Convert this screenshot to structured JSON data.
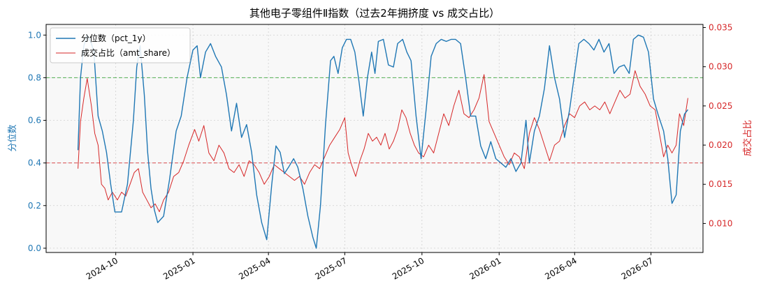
{
  "chart_data": {
    "type": "line",
    "title": "其他电子零组件Ⅱ指数（过去2年拥挤度 vs 成交占比）",
    "xlabel": "",
    "y_left_label": "分位数",
    "y_right_label": "成交占比",
    "x_ticks": [
      "2024-10",
      "2025-01",
      "2025-04",
      "2025-07",
      "2025-10",
      "2026-01",
      "2026-04",
      "2026-07"
    ],
    "y_left_ticks": [
      "0.0",
      "0.2",
      "0.4",
      "0.6",
      "0.8",
      "1.0"
    ],
    "y_right_ticks": [
      "0.010",
      "0.015",
      "0.020",
      "0.025",
      "0.030",
      "0.035"
    ],
    "y_left_lim": [
      -0.02,
      1.05
    ],
    "y_right_lim": [
      0.0063,
      0.0354
    ],
    "reference_lines": [
      {
        "axis": "left",
        "value": 0.8,
        "style": "dashed",
        "color": "#2ca02c"
      },
      {
        "axis": "left",
        "value": 0.4,
        "style": "dashed",
        "color": "#d62728"
      }
    ],
    "grid": true,
    "legend_position": "top-left",
    "series": [
      {
        "name": "分位数（pct_1y）",
        "axis": "left",
        "color": "#1f77b4",
        "points": [
          [
            "2024-08-17",
            0.46
          ],
          [
            "2024-08-20",
            0.8
          ],
          [
            "2024-08-24",
            0.95
          ],
          [
            "2024-08-28",
            1.0
          ],
          [
            "2024-09-02",
            0.96
          ],
          [
            "2024-09-05",
            0.92
          ],
          [
            "2024-09-10",
            0.62
          ],
          [
            "2024-09-15",
            0.55
          ],
          [
            "2024-09-20",
            0.45
          ],
          [
            "2024-09-25",
            0.3
          ],
          [
            "2024-09-30",
            0.17
          ],
          [
            "2024-10-08",
            0.17
          ],
          [
            "2024-10-15",
            0.3
          ],
          [
            "2024-10-22",
            0.6
          ],
          [
            "2024-10-26",
            0.85
          ],
          [
            "2024-10-30",
            0.95
          ],
          [
            "2024-11-04",
            0.72
          ],
          [
            "2024-11-08",
            0.45
          ],
          [
            "2024-11-12",
            0.28
          ],
          [
            "2024-11-16",
            0.18
          ],
          [
            "2024-11-20",
            0.12
          ],
          [
            "2024-11-27",
            0.15
          ],
          [
            "2024-12-04",
            0.32
          ],
          [
            "2024-12-12",
            0.55
          ],
          [
            "2024-12-18",
            0.62
          ],
          [
            "2024-12-25",
            0.8
          ],
          [
            "2025-01-01",
            0.93
          ],
          [
            "2025-01-06",
            0.95
          ],
          [
            "2025-01-10",
            0.8
          ],
          [
            "2025-01-16",
            0.92
          ],
          [
            "2025-01-22",
            0.96
          ],
          [
            "2025-01-28",
            0.9
          ],
          [
            "2025-02-04",
            0.85
          ],
          [
            "2025-02-10",
            0.72
          ],
          [
            "2025-02-16",
            0.55
          ],
          [
            "2025-02-22",
            0.68
          ],
          [
            "2025-02-28",
            0.52
          ],
          [
            "2025-03-06",
            0.58
          ],
          [
            "2025-03-12",
            0.45
          ],
          [
            "2025-03-18",
            0.25
          ],
          [
            "2025-03-24",
            0.12
          ],
          [
            "2025-03-30",
            0.04
          ],
          [
            "2025-04-05",
            0.3
          ],
          [
            "2025-04-10",
            0.48
          ],
          [
            "2025-04-15",
            0.45
          ],
          [
            "2025-04-20",
            0.35
          ],
          [
            "2025-04-25",
            0.38
          ],
          [
            "2025-05-01",
            0.42
          ],
          [
            "2025-05-06",
            0.38
          ],
          [
            "2025-05-12",
            0.28
          ],
          [
            "2025-05-18",
            0.15
          ],
          [
            "2025-05-24",
            0.05
          ],
          [
            "2025-05-28",
            0.0
          ],
          [
            "2025-06-02",
            0.2
          ],
          [
            "2025-06-08",
            0.58
          ],
          [
            "2025-06-14",
            0.88
          ],
          [
            "2025-06-18",
            0.9
          ],
          [
            "2025-06-23",
            0.82
          ],
          [
            "2025-06-28",
            0.94
          ],
          [
            "2025-07-03",
            0.98
          ],
          [
            "2025-07-08",
            0.98
          ],
          [
            "2025-07-13",
            0.92
          ],
          [
            "2025-07-18",
            0.78
          ],
          [
            "2025-07-23",
            0.62
          ],
          [
            "2025-07-28",
            0.8
          ],
          [
            "2025-08-02",
            0.92
          ],
          [
            "2025-08-06",
            0.82
          ],
          [
            "2025-08-10",
            0.97
          ],
          [
            "2025-08-16",
            0.98
          ],
          [
            "2025-08-22",
            0.86
          ],
          [
            "2025-08-28",
            0.85
          ],
          [
            "2025-09-02",
            0.96
          ],
          [
            "2025-09-08",
            0.98
          ],
          [
            "2025-09-13",
            0.92
          ],
          [
            "2025-09-18",
            0.88
          ],
          [
            "2025-09-24",
            0.62
          ],
          [
            "2025-09-30",
            0.42
          ],
          [
            "2025-10-06",
            0.65
          ],
          [
            "2025-10-12",
            0.9
          ],
          [
            "2025-10-18",
            0.96
          ],
          [
            "2025-10-24",
            0.98
          ],
          [
            "2025-10-30",
            0.97
          ],
          [
            "2025-11-05",
            0.98
          ],
          [
            "2025-11-10",
            0.98
          ],
          [
            "2025-11-16",
            0.96
          ],
          [
            "2025-11-22",
            0.8
          ],
          [
            "2025-11-28",
            0.62
          ],
          [
            "2025-12-04",
            0.62
          ],
          [
            "2025-12-10",
            0.48
          ],
          [
            "2025-12-16",
            0.42
          ],
          [
            "2025-12-22",
            0.5
          ],
          [
            "2025-12-28",
            0.42
          ],
          [
            "2026-01-03",
            0.4
          ],
          [
            "2026-01-09",
            0.38
          ],
          [
            "2026-01-15",
            0.42
          ],
          [
            "2026-01-21",
            0.36
          ],
          [
            "2026-01-27",
            0.4
          ],
          [
            "2026-02-02",
            0.6
          ],
          [
            "2026-02-06",
            0.4
          ],
          [
            "2026-02-12",
            0.55
          ],
          [
            "2026-02-18",
            0.62
          ],
          [
            "2026-02-24",
            0.75
          ],
          [
            "2026-03-02",
            0.95
          ],
          [
            "2026-03-08",
            0.8
          ],
          [
            "2026-03-14",
            0.7
          ],
          [
            "2026-03-20",
            0.52
          ],
          [
            "2026-03-26",
            0.65
          ],
          [
            "2026-04-01",
            0.82
          ],
          [
            "2026-04-06",
            0.96
          ],
          [
            "2026-04-12",
            0.98
          ],
          [
            "2026-04-18",
            0.96
          ],
          [
            "2026-04-24",
            0.93
          ],
          [
            "2026-04-30",
            0.98
          ],
          [
            "2026-05-06",
            0.92
          ],
          [
            "2026-05-12",
            0.96
          ],
          [
            "2026-05-18",
            0.82
          ],
          [
            "2026-05-24",
            0.85
          ],
          [
            "2026-05-30",
            0.86
          ],
          [
            "2026-06-05",
            0.82
          ],
          [
            "2026-06-10",
            0.98
          ],
          [
            "2026-06-16",
            1.0
          ],
          [
            "2026-06-22",
            0.99
          ],
          [
            "2026-06-28",
            0.92
          ],
          [
            "2026-07-04",
            0.7
          ],
          [
            "2026-07-10",
            0.62
          ],
          [
            "2026-07-16",
            0.55
          ],
          [
            "2026-07-21",
            0.42
          ],
          [
            "2026-07-26",
            0.21
          ],
          [
            "2026-07-31",
            0.25
          ],
          [
            "2026-08-05",
            0.55
          ],
          [
            "2026-08-10",
            0.63
          ],
          [
            "2026-08-14",
            0.65
          ]
        ]
      },
      {
        "name": "成交占比（amt_share）",
        "axis": "right",
        "color": "#d62728",
        "points": [
          [
            "2024-08-17",
            0.017
          ],
          [
            "2024-08-20",
            0.023
          ],
          [
            "2024-08-24",
            0.026
          ],
          [
            "2024-08-28",
            0.0285
          ],
          [
            "2024-09-02",
            0.025
          ],
          [
            "2024-09-06",
            0.0215
          ],
          [
            "2024-09-10",
            0.02
          ],
          [
            "2024-09-14",
            0.015
          ],
          [
            "2024-09-18",
            0.0145
          ],
          [
            "2024-09-22",
            0.013
          ],
          [
            "2024-09-27",
            0.014
          ],
          [
            "2024-10-03",
            0.013
          ],
          [
            "2024-10-08",
            0.014
          ],
          [
            "2024-10-13",
            0.0135
          ],
          [
            "2024-10-18",
            0.015
          ],
          [
            "2024-10-23",
            0.0165
          ],
          [
            "2024-10-28",
            0.017
          ],
          [
            "2024-11-02",
            0.014
          ],
          [
            "2024-11-07",
            0.013
          ],
          [
            "2024-11-12",
            0.012
          ],
          [
            "2024-11-17",
            0.0125
          ],
          [
            "2024-11-22",
            0.0115
          ],
          [
            "2024-11-27",
            0.013
          ],
          [
            "2024-12-03",
            0.014
          ],
          [
            "2024-12-09",
            0.016
          ],
          [
            "2024-12-15",
            0.0165
          ],
          [
            "2024-12-21",
            0.018
          ],
          [
            "2024-12-27",
            0.02
          ],
          [
            "2025-01-03",
            0.022
          ],
          [
            "2025-01-08",
            0.0205
          ],
          [
            "2025-01-14",
            0.0225
          ],
          [
            "2025-01-20",
            0.019
          ],
          [
            "2025-01-26",
            0.018
          ],
          [
            "2025-02-01",
            0.02
          ],
          [
            "2025-02-07",
            0.019
          ],
          [
            "2025-02-13",
            0.017
          ],
          [
            "2025-02-19",
            0.0165
          ],
          [
            "2025-02-25",
            0.0175
          ],
          [
            "2025-03-03",
            0.016
          ],
          [
            "2025-03-09",
            0.018
          ],
          [
            "2025-03-15",
            0.0175
          ],
          [
            "2025-03-21",
            0.0165
          ],
          [
            "2025-03-27",
            0.015
          ],
          [
            "2025-04-02",
            0.016
          ],
          [
            "2025-04-08",
            0.0175
          ],
          [
            "2025-04-14",
            0.017
          ],
          [
            "2025-04-20",
            0.0165
          ],
          [
            "2025-04-26",
            0.016
          ],
          [
            "2025-05-02",
            0.0155
          ],
          [
            "2025-05-08",
            0.016
          ],
          [
            "2025-05-14",
            0.015
          ],
          [
            "2025-05-20",
            0.0165
          ],
          [
            "2025-05-26",
            0.0175
          ],
          [
            "2025-06-01",
            0.017
          ],
          [
            "2025-06-07",
            0.0185
          ],
          [
            "2025-06-13",
            0.02
          ],
          [
            "2025-06-19",
            0.021
          ],
          [
            "2025-06-25",
            0.022
          ],
          [
            "2025-07-01",
            0.0235
          ],
          [
            "2025-07-05",
            0.019
          ],
          [
            "2025-07-09",
            0.0175
          ],
          [
            "2025-07-14",
            0.016
          ],
          [
            "2025-07-19",
            0.018
          ],
          [
            "2025-07-24",
            0.0195
          ],
          [
            "2025-07-29",
            0.0215
          ],
          [
            "2025-08-03",
            0.0205
          ],
          [
            "2025-08-08",
            0.021
          ],
          [
            "2025-08-13",
            0.02
          ],
          [
            "2025-08-18",
            0.0215
          ],
          [
            "2025-08-23",
            0.0195
          ],
          [
            "2025-08-28",
            0.0205
          ],
          [
            "2025-09-02",
            0.022
          ],
          [
            "2025-09-07",
            0.0245
          ],
          [
            "2025-09-12",
            0.0235
          ],
          [
            "2025-09-17",
            0.0215
          ],
          [
            "2025-09-22",
            0.02
          ],
          [
            "2025-09-27",
            0.019
          ],
          [
            "2025-10-03",
            0.0185
          ],
          [
            "2025-10-09",
            0.02
          ],
          [
            "2025-10-15",
            0.019
          ],
          [
            "2025-10-21",
            0.0215
          ],
          [
            "2025-10-27",
            0.024
          ],
          [
            "2025-11-02",
            0.0225
          ],
          [
            "2025-11-08",
            0.025
          ],
          [
            "2025-11-14",
            0.027
          ],
          [
            "2025-11-20",
            0.024
          ],
          [
            "2025-11-26",
            0.0235
          ],
          [
            "2025-12-02",
            0.0245
          ],
          [
            "2025-12-08",
            0.026
          ],
          [
            "2025-12-14",
            0.029
          ],
          [
            "2025-12-20",
            0.023
          ],
          [
            "2025-12-26",
            0.0215
          ],
          [
            "2026-01-01",
            0.02
          ],
          [
            "2026-01-07",
            0.0185
          ],
          [
            "2026-01-13",
            0.0175
          ],
          [
            "2026-01-19",
            0.019
          ],
          [
            "2026-01-25",
            0.0185
          ],
          [
            "2026-01-31",
            0.017
          ],
          [
            "2026-02-06",
            0.0215
          ],
          [
            "2026-02-12",
            0.0235
          ],
          [
            "2026-02-18",
            0.022
          ],
          [
            "2026-02-24",
            0.02
          ],
          [
            "2026-03-02",
            0.018
          ],
          [
            "2026-03-08",
            0.02
          ],
          [
            "2026-03-14",
            0.0205
          ],
          [
            "2026-03-20",
            0.0225
          ],
          [
            "2026-03-26",
            0.024
          ],
          [
            "2026-04-01",
            0.0235
          ],
          [
            "2026-04-07",
            0.025
          ],
          [
            "2026-04-13",
            0.0255
          ],
          [
            "2026-04-19",
            0.0245
          ],
          [
            "2026-04-25",
            0.025
          ],
          [
            "2026-05-01",
            0.0245
          ],
          [
            "2026-05-07",
            0.0255
          ],
          [
            "2026-05-13",
            0.024
          ],
          [
            "2026-05-19",
            0.0255
          ],
          [
            "2026-05-25",
            0.027
          ],
          [
            "2026-05-31",
            0.026
          ],
          [
            "2026-06-06",
            0.0265
          ],
          [
            "2026-06-12",
            0.0295
          ],
          [
            "2026-06-18",
            0.0275
          ],
          [
            "2026-06-24",
            0.0265
          ],
          [
            "2026-06-30",
            0.025
          ],
          [
            "2026-07-06",
            0.0245
          ],
          [
            "2026-07-11",
            0.0215
          ],
          [
            "2026-07-16",
            0.0185
          ],
          [
            "2026-07-21",
            0.02
          ],
          [
            "2026-07-26",
            0.019
          ],
          [
            "2026-07-31",
            0.02
          ],
          [
            "2026-08-04",
            0.024
          ],
          [
            "2026-08-09",
            0.0225
          ],
          [
            "2026-08-14",
            0.026
          ]
        ]
      }
    ]
  }
}
